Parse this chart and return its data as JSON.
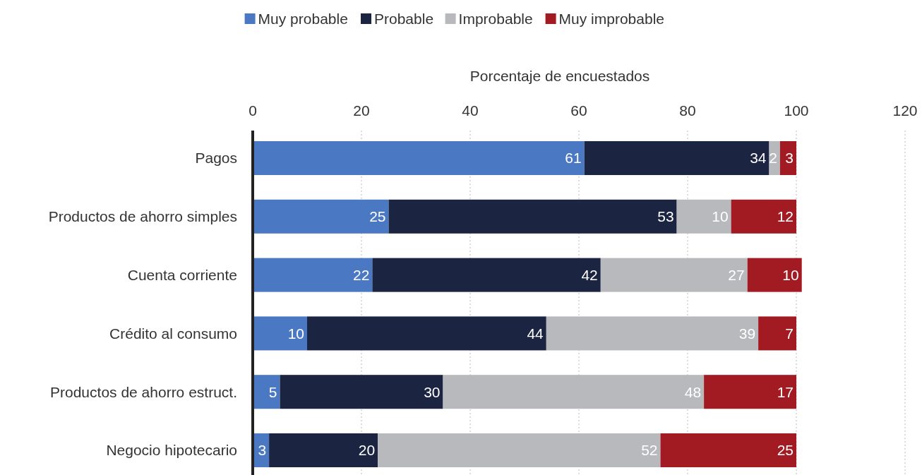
{
  "chart_data": {
    "type": "bar",
    "orientation": "horizontal",
    "stacked": true,
    "xlabel": "Porcentaje de encuestados",
    "categories": [
      "Pagos",
      "Productos de ahorro simples",
      "Cuenta corriente",
      "Crédito al consumo",
      "Productos de ahorro estruct.",
      "Negocio hipotecario"
    ],
    "series": [
      {
        "name": "Muy probable",
        "color": "#4a78c2",
        "values": [
          61,
          25,
          22,
          10,
          5,
          3
        ]
      },
      {
        "name": "Probable",
        "color": "#1b2440",
        "values": [
          34,
          53,
          42,
          44,
          30,
          20
        ]
      },
      {
        "name": "Improbable",
        "color": "#b8b9bd",
        "values": [
          2,
          10,
          27,
          39,
          48,
          52
        ]
      },
      {
        "name": "Muy improbable",
        "color": "#a31b22",
        "values": [
          3,
          12,
          10,
          7,
          17,
          25
        ]
      }
    ],
    "xlim": [
      0,
      120
    ],
    "xticks": [
      0,
      20,
      40,
      60,
      80,
      100,
      120
    ],
    "grid": "x",
    "legend": "top",
    "data_labels": true
  }
}
